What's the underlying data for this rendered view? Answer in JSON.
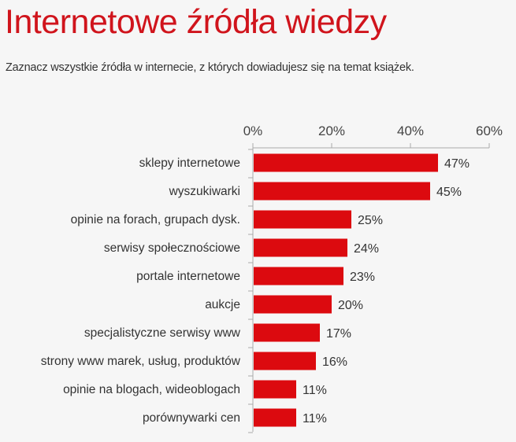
{
  "chart_data": {
    "type": "bar",
    "orientation": "horizontal",
    "title": "Internetowe źródła wiedzy",
    "subtitle": "Zaznacz wszystkie źródła w internecie, z których dowiadujesz się na temat książek.",
    "categories": [
      "sklepy internetowe",
      "wyszukiwarki",
      "opinie na forach, grupach dysk.",
      "serwisy społecznościowe",
      "portale internetowe",
      "aukcje",
      "specjalistyczne serwisy www",
      "strony www marek, usług, produktów",
      "opinie na blogach, wideoblogach",
      "porównywarki cen"
    ],
    "values": [
      47,
      45,
      25,
      24,
      23,
      20,
      17,
      16,
      11,
      11
    ],
    "value_labels": [
      "47%",
      "45%",
      "25%",
      "24%",
      "23%",
      "20%",
      "17%",
      "16%",
      "11%",
      "11%"
    ],
    "xlim": [
      0,
      60
    ],
    "x_ticks": [
      0,
      20,
      40,
      60
    ],
    "x_tick_labels": [
      "0%",
      "20%",
      "40%",
      "60%"
    ],
    "x_axis_position": "top",
    "grid": false,
    "bar_color": "#dc0a0f",
    "title_color": "#d0141c"
  }
}
